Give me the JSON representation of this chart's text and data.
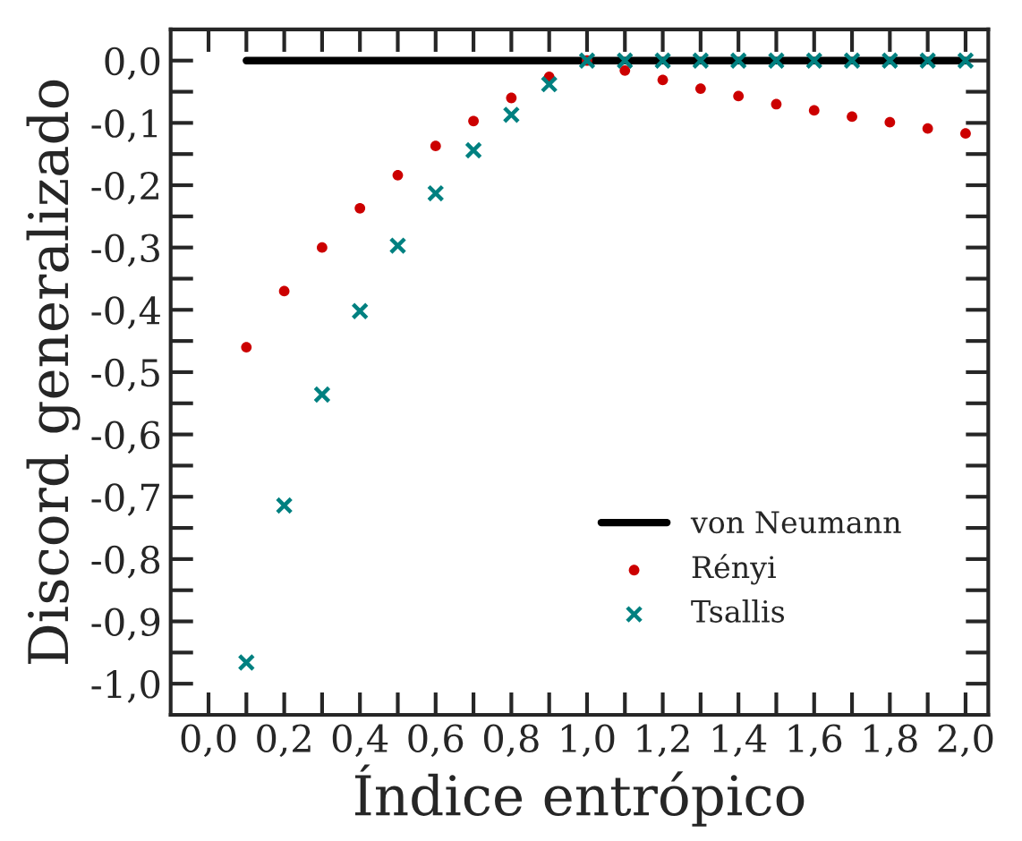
{
  "chart_data": {
    "type": "scatter",
    "xlabel": "Índice entrópico",
    "ylabel": "Discord generalizado",
    "x": [
      0.1,
      0.2,
      0.3,
      0.4,
      0.5,
      0.6,
      0.7,
      0.8,
      0.9,
      1.0,
      1.1,
      1.2,
      1.3,
      1.4,
      1.5,
      1.6,
      1.7,
      1.8,
      1.9,
      2.0
    ],
    "series": [
      {
        "name": "von Neumann",
        "type": "line",
        "color": "#000000",
        "marker": "none",
        "line_style": "solid",
        "values": [
          0,
          0,
          0,
          0,
          0,
          0,
          0,
          0,
          0,
          0,
          0,
          0,
          0,
          0,
          0,
          0,
          0,
          0,
          0,
          0
        ]
      },
      {
        "name": "Rényi",
        "color": "#cc0000",
        "marker": "circle",
        "values": [
          -0.46,
          -0.37,
          -0.3,
          -0.237,
          -0.184,
          -0.137,
          -0.097,
          -0.06,
          -0.026,
          0,
          -0.016,
          -0.031,
          -0.045,
          -0.057,
          -0.07,
          -0.08,
          -0.09,
          -0.099,
          -0.109,
          -0.117
        ]
      },
      {
        "name": "Tsallis",
        "color": "#008080",
        "marker": "cross",
        "values": [
          -0.966,
          -0.714,
          -0.536,
          -0.402,
          -0.297,
          -0.213,
          -0.144,
          -0.087,
          -0.038,
          0,
          0,
          0,
          0,
          0,
          0,
          0,
          0,
          0,
          0,
          0
        ]
      }
    ],
    "xlim": [
      -0.1,
      2.06
    ],
    "ylim": [
      -1.05,
      0.05
    ],
    "xticks": [
      {
        "value": 0.0,
        "label": "0,0"
      },
      {
        "value": 0.1,
        "label": null
      },
      {
        "value": 0.2,
        "label": "0,2"
      },
      {
        "value": 0.3,
        "label": null
      },
      {
        "value": 0.4,
        "label": "0,4"
      },
      {
        "value": 0.5,
        "label": null
      },
      {
        "value": 0.6,
        "label": "0,6"
      },
      {
        "value": 0.7,
        "label": null
      },
      {
        "value": 0.8,
        "label": "0,8"
      },
      {
        "value": 0.9,
        "label": null
      },
      {
        "value": 1.0,
        "label": "1,0"
      },
      {
        "value": 1.1,
        "label": null
      },
      {
        "value": 1.2,
        "label": "1,2"
      },
      {
        "value": 1.3,
        "label": null
      },
      {
        "value": 1.4,
        "label": "1,4"
      },
      {
        "value": 1.5,
        "label": null
      },
      {
        "value": 1.6,
        "label": "1,6"
      },
      {
        "value": 1.7,
        "label": null
      },
      {
        "value": 1.8,
        "label": "1,8"
      },
      {
        "value": 1.9,
        "label": null
      },
      {
        "value": 2.0,
        "label": "2,0"
      }
    ],
    "yticks": [
      {
        "value": 0.0,
        "label": "0,0"
      },
      {
        "value": -0.05,
        "label": null
      },
      {
        "value": -0.1,
        "label": "-0,1"
      },
      {
        "value": -0.15,
        "label": null
      },
      {
        "value": -0.2,
        "label": "-0,2"
      },
      {
        "value": -0.25,
        "label": null
      },
      {
        "value": -0.3,
        "label": "-0,3"
      },
      {
        "value": -0.35,
        "label": null
      },
      {
        "value": -0.4,
        "label": "-0,4"
      },
      {
        "value": -0.45,
        "label": null
      },
      {
        "value": -0.5,
        "label": "-0,5"
      },
      {
        "value": -0.55,
        "label": null
      },
      {
        "value": -0.6,
        "label": "-0,6"
      },
      {
        "value": -0.65,
        "label": null
      },
      {
        "value": -0.7,
        "label": "-0,7"
      },
      {
        "value": -0.75,
        "label": null
      },
      {
        "value": -0.8,
        "label": "-0,8"
      },
      {
        "value": -0.85,
        "label": null
      },
      {
        "value": -0.9,
        "label": "-0,9"
      },
      {
        "value": -0.95,
        "label": null
      },
      {
        "value": -1.0,
        "label": "-1,0"
      }
    ],
    "grid": false,
    "legend": "bottom right"
  }
}
